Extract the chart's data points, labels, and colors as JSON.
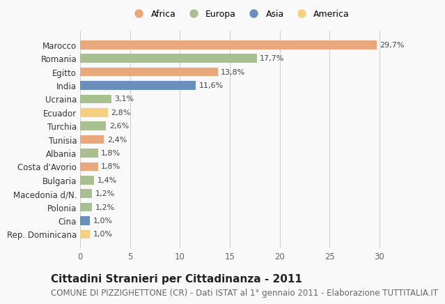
{
  "countries": [
    "Marocco",
    "Romania",
    "Egitto",
    "India",
    "Ucraina",
    "Ecuador",
    "Turchia",
    "Tunisia",
    "Albania",
    "Costa d'Avorio",
    "Bulgaria",
    "Macedonia d/N.",
    "Polonia",
    "Cina",
    "Rep. Dominicana"
  ],
  "values": [
    29.7,
    17.7,
    13.8,
    11.6,
    3.1,
    2.8,
    2.6,
    2.4,
    1.8,
    1.8,
    1.4,
    1.2,
    1.2,
    1.0,
    1.0
  ],
  "labels": [
    "29,7%",
    "17,7%",
    "13,8%",
    "11,6%",
    "3,1%",
    "2,8%",
    "2,6%",
    "2,4%",
    "1,8%",
    "1,8%",
    "1,4%",
    "1,2%",
    "1,2%",
    "1,0%",
    "1,0%"
  ],
  "continents": [
    "Africa",
    "Europa",
    "Africa",
    "Asia",
    "Europa",
    "America",
    "Europa",
    "Africa",
    "Europa",
    "Africa",
    "Europa",
    "Europa",
    "Europa",
    "Asia",
    "America"
  ],
  "colors": {
    "Africa": "#E8A87C",
    "Europa": "#A8C090",
    "Asia": "#6B8FBD",
    "America": "#F5D080"
  },
  "legend_items": [
    "Africa",
    "Europa",
    "Asia",
    "America"
  ],
  "xlim": [
    0,
    32
  ],
  "xticks": [
    0,
    5,
    10,
    15,
    20,
    25,
    30
  ],
  "title": "Cittadini Stranieri per Cittadinanza - 2011",
  "subtitle": "COMUNE DI PIZZIGHETTONE (CR) - Dati ISTAT al 1° gennaio 2011 - Elaborazione TUTTITALIA.IT",
  "background_color": "#f9f9f9",
  "bar_height": 0.65,
  "title_fontsize": 11,
  "subtitle_fontsize": 8.5
}
